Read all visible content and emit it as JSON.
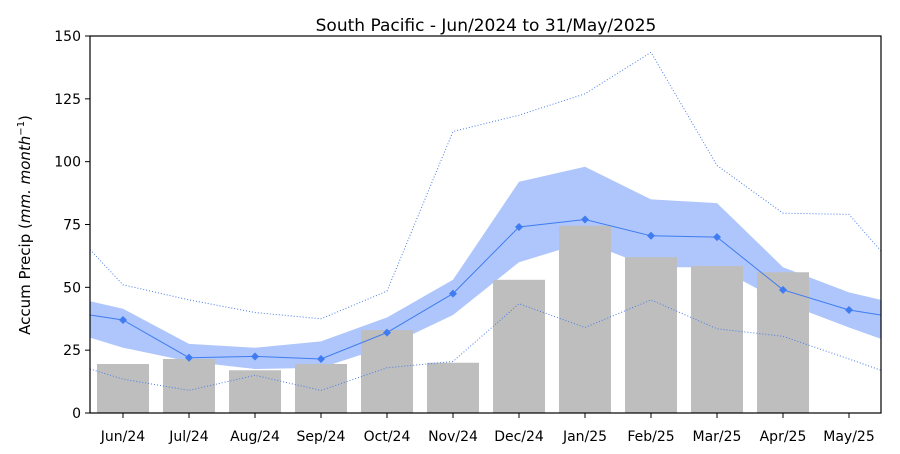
{
  "chart_data": {
    "type": "bar",
    "title": "South Pacific - Jun/2024 to 31/May/2025",
    "ylabel_prefix": "Accum Precip (",
    "ylabel_italic": "mm. month",
    "ylabel_sup": "−1",
    "ylabel_suffix": ")",
    "xlabel": "",
    "ylim": [
      0,
      150
    ],
    "yticks": [
      0,
      25,
      50,
      75,
      100,
      125,
      150
    ],
    "categories": [
      "Jun/24",
      "Jul/24",
      "Aug/24",
      "Sep/24",
      "Oct/24",
      "Nov/24",
      "Dec/24",
      "Jan/25",
      "Feb/25",
      "Mar/25",
      "Apr/25",
      "May/25"
    ],
    "observed_bars": [
      19.5,
      21.5,
      17,
      19.5,
      33,
      20,
      53,
      74.5,
      62,
      58.5,
      56,
      null
    ],
    "mean_line": [
      37,
      22,
      22.5,
      21.5,
      32,
      47.5,
      74,
      77,
      70.5,
      70,
      49,
      41
    ],
    "mean_edges": [
      39,
      39
    ],
    "band_upper": [
      41.5,
      27.5,
      26,
      28.5,
      38,
      53,
      92,
      98,
      85,
      83.5,
      58,
      48
    ],
    "band_lower": [
      26,
      20.5,
      17.5,
      18,
      26.5,
      39,
      60,
      68,
      58,
      58,
      44,
      34
    ],
    "band_edges_upper": [
      44.5,
      45
    ],
    "band_edges_lower": [
      30,
      29.5
    ],
    "max_line": [
      51,
      45,
      40,
      37.5,
      48.5,
      112,
      118.5,
      127,
      143.5,
      98.5,
      79.5,
      79
    ],
    "max_edges": [
      65,
      64.5
    ],
    "min_line": [
      13.5,
      9,
      15,
      9,
      18,
      20.5,
      43.5,
      34,
      45,
      33.5,
      30.5,
      21.5
    ],
    "min_edges": [
      17.5,
      17
    ],
    "grid": false,
    "colors": {
      "bars": "#bebebe",
      "band": "#aec6fb",
      "line": "#3f7cf1",
      "dotted": "#4a7ee6",
      "axis": "#000000"
    }
  }
}
